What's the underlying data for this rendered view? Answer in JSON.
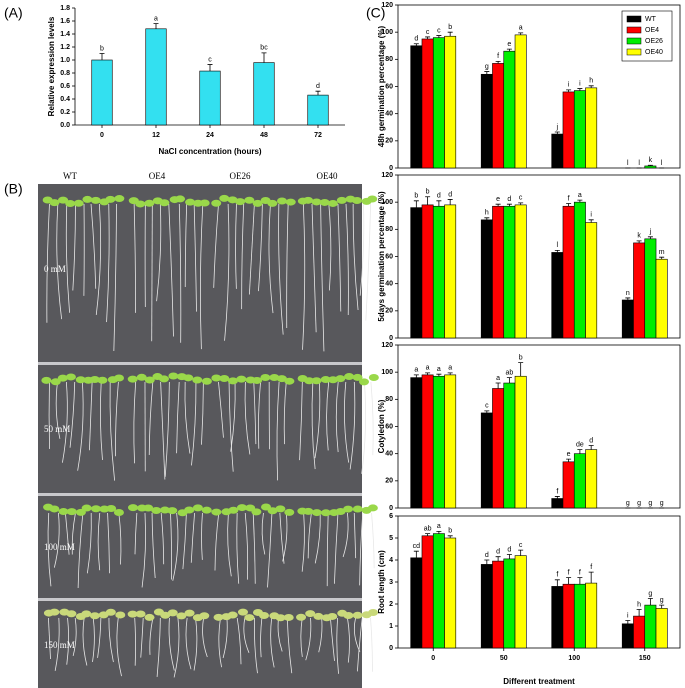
{
  "panel_a_label": "(A)",
  "panel_c_label": "(C)",
  "photo": {
    "label": "(B)",
    "columns": [
      "WT",
      "OE4",
      "OE26",
      "OE40"
    ],
    "rows": [
      "0 mM",
      "50 mM",
      "100 mM",
      "150 mM"
    ]
  },
  "chart_data": [
    {
      "type": "bar",
      "categories": [
        "0",
        "12",
        "24",
        "48",
        "72"
      ],
      "values": [
        1.0,
        1.48,
        0.83,
        0.96,
        0.46
      ],
      "errors": [
        0.1,
        0.08,
        0.1,
        0.15,
        0.06
      ],
      "letters": [
        "b",
        "a",
        "c",
        "bc",
        "d"
      ],
      "color": "#33e0f0",
      "xlabel": "NaCl concentration (hours)",
      "ylabel": "Relative expression levels",
      "ylim": [
        0,
        1.8
      ],
      "yticks": [
        {
          "value": 0,
          "label": "0.0"
        },
        0.2,
        0.4,
        0.6,
        0.8,
        {
          "value": 1,
          "label": "1.0"
        },
        1.2,
        1.4,
        1.6,
        1.8
      ]
    },
    {
      "type": "bar",
      "ylabel": "48h germination percentage (%)",
      "ylim": [
        0,
        120
      ],
      "yticks": [
        0,
        20,
        40,
        60,
        80,
        100,
        120
      ],
      "legend": "upper right",
      "series": [
        {
          "name": "WT",
          "color": "#000000",
          "values": [
            90,
            69,
            25,
            0
          ],
          "errors": [
            1.5,
            2,
            1.5,
            0
          ],
          "letters": [
            "d",
            "g",
            "j",
            "l"
          ]
        },
        {
          "name": "OE4",
          "color": "#ff0000",
          "values": [
            95,
            77,
            56,
            0
          ],
          "errors": [
            1.5,
            1.5,
            1.5,
            0
          ],
          "letters": [
            "c",
            "f",
            "i",
            "l"
          ]
        },
        {
          "name": "OE26",
          "color": "#00ee00",
          "values": [
            96,
            86,
            57,
            1.5
          ],
          "errors": [
            1.5,
            1.5,
            1.5,
            0.5
          ],
          "letters": [
            "c",
            "e",
            "i",
            "k"
          ]
        },
        {
          "name": "OE40",
          "color": "#ffff00",
          "values": [
            97,
            98,
            59,
            0
          ],
          "errors": [
            3,
            1.5,
            1.5,
            0
          ],
          "letters": [
            "b",
            "a",
            "h",
            "l"
          ]
        }
      ]
    },
    {
      "type": "bar",
      "ylabel": "5days germination percentage (%)",
      "ylim": [
        0,
        120
      ],
      "yticks": [
        0,
        20,
        40,
        60,
        80,
        100,
        120
      ],
      "series": [
        {
          "color": "#000000",
          "values": [
            96,
            87,
            63,
            28
          ],
          "errors": [
            5,
            1.5,
            1.5,
            1.5
          ],
          "letters": [
            "b",
            "h",
            "l",
            "n"
          ]
        },
        {
          "color": "#ff0000",
          "values": [
            98,
            97,
            97,
            70
          ],
          "errors": [
            6,
            1.5,
            2,
            1.5
          ],
          "letters": [
            "b",
            "e",
            "f",
            "k"
          ]
        },
        {
          "color": "#00ee00",
          "values": [
            97,
            97,
            100,
            73
          ],
          "errors": [
            4,
            1.5,
            1.5,
            1.5
          ],
          "letters": [
            "d",
            "d",
            "a",
            "j"
          ]
        },
        {
          "color": "#ffff00",
          "values": [
            98,
            98,
            85,
            58
          ],
          "errors": [
            4,
            1.5,
            2,
            1.5
          ],
          "letters": [
            "d",
            "c",
            "i",
            "m"
          ]
        }
      ]
    },
    {
      "type": "bar",
      "ylabel": "Cotyledon (%)",
      "ylim": [
        0,
        120
      ],
      "yticks": [
        0,
        20,
        40,
        60,
        80,
        100,
        120
      ],
      "series": [
        {
          "color": "#000000",
          "values": [
            96,
            70,
            7,
            0
          ],
          "errors": [
            2,
            1.5,
            1.5,
            0
          ],
          "letters": [
            "a",
            "c",
            "f",
            "g"
          ]
        },
        {
          "color": "#ff0000",
          "values": [
            98,
            88,
            34,
            0
          ],
          "errors": [
            1.5,
            4,
            2,
            0
          ],
          "letters": [
            "a",
            "a",
            "e",
            "g"
          ]
        },
        {
          "color": "#00ee00",
          "values": [
            97,
            92,
            40,
            0
          ],
          "errors": [
            1.5,
            4,
            3,
            0
          ],
          "letters": [
            "a",
            "ab",
            "de",
            "g"
          ]
        },
        {
          "color": "#ffff00",
          "values": [
            98,
            97,
            43,
            0
          ],
          "errors": [
            1.5,
            10,
            3,
            0
          ],
          "letters": [
            "a",
            "b",
            "d",
            "g"
          ]
        }
      ]
    },
    {
      "type": "bar",
      "categories": [
        "0",
        "50",
        "100",
        "150"
      ],
      "xlabel": "Different treatment",
      "ylabel": "Root length (cm)",
      "ylim": [
        0,
        6
      ],
      "yticks": [
        0,
        1,
        2,
        3,
        4,
        5,
        6
      ],
      "series": [
        {
          "color": "#000000",
          "values": [
            4.1,
            3.8,
            2.8,
            1.1
          ],
          "errors": [
            0.3,
            0.2,
            0.3,
            0.15
          ],
          "letters": [
            "cd",
            "d",
            "f",
            "i"
          ]
        },
        {
          "color": "#ff0000",
          "values": [
            5.1,
            3.95,
            2.9,
            1.45
          ],
          "errors": [
            0.1,
            0.2,
            0.3,
            0.3
          ],
          "letters": [
            "ab",
            "d",
            "f",
            "h"
          ]
        },
        {
          "color": "#00ee00",
          "values": [
            5.2,
            4.05,
            2.9,
            1.95
          ],
          "errors": [
            0.1,
            0.2,
            0.3,
            0.3
          ],
          "letters": [
            "a",
            "d",
            "f",
            "g"
          ]
        },
        {
          "color": "#ffff00",
          "values": [
            5.0,
            4.2,
            2.95,
            1.8
          ],
          "errors": [
            0.1,
            0.25,
            0.5,
            0.15
          ],
          "letters": [
            "b",
            "c",
            "f",
            "g"
          ]
        }
      ]
    }
  ]
}
